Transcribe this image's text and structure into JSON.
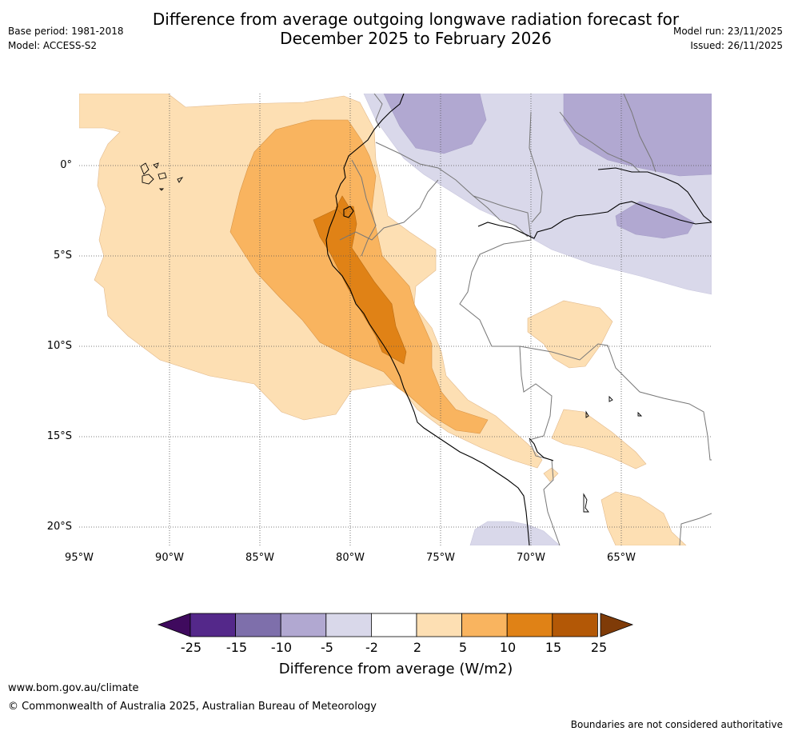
{
  "header": {
    "title_line1": "Difference from average outgoing longwave radiation forecast for",
    "title_line2": "December 2025 to February 2026",
    "base_period": "Base period: 1981-2018",
    "model": "Model: ACCESS-S2",
    "model_run": "Model run: 23/11/2025",
    "issued": "Issued: 26/11/2025"
  },
  "map": {
    "lat_labels": [
      "0°",
      "5°S",
      "10°S",
      "15°S",
      "20°S"
    ],
    "lon_labels": [
      "95°W",
      "90°W",
      "85°W",
      "80°W",
      "75°W",
      "70°W",
      "65°W"
    ],
    "extent": {
      "lon_min": -95,
      "lon_max": -60,
      "lat_min": -21,
      "lat_max": 4
    }
  },
  "colorbar": {
    "ticks": [
      "-25",
      "-15",
      "-10",
      "-5",
      "-2",
      "2",
      "5",
      "10",
      "15",
      "25"
    ],
    "colors": [
      "#3f0a5e",
      "#54288a",
      "#7e6fab",
      "#b1a8d1",
      "#d9d8ea",
      "#ffffff",
      "#fddfb3",
      "#f9b45f",
      "#e08216",
      "#b35806",
      "#7f3b08"
    ],
    "label": "Difference from average (W/m2)"
  },
  "footer": {
    "website": "www.bom.gov.au/climate",
    "copyright": "© Commonwealth of Australia 2025, Australian Bureau of Meteorology",
    "disclaimer": "Boundaries are not considered authoritative"
  }
}
